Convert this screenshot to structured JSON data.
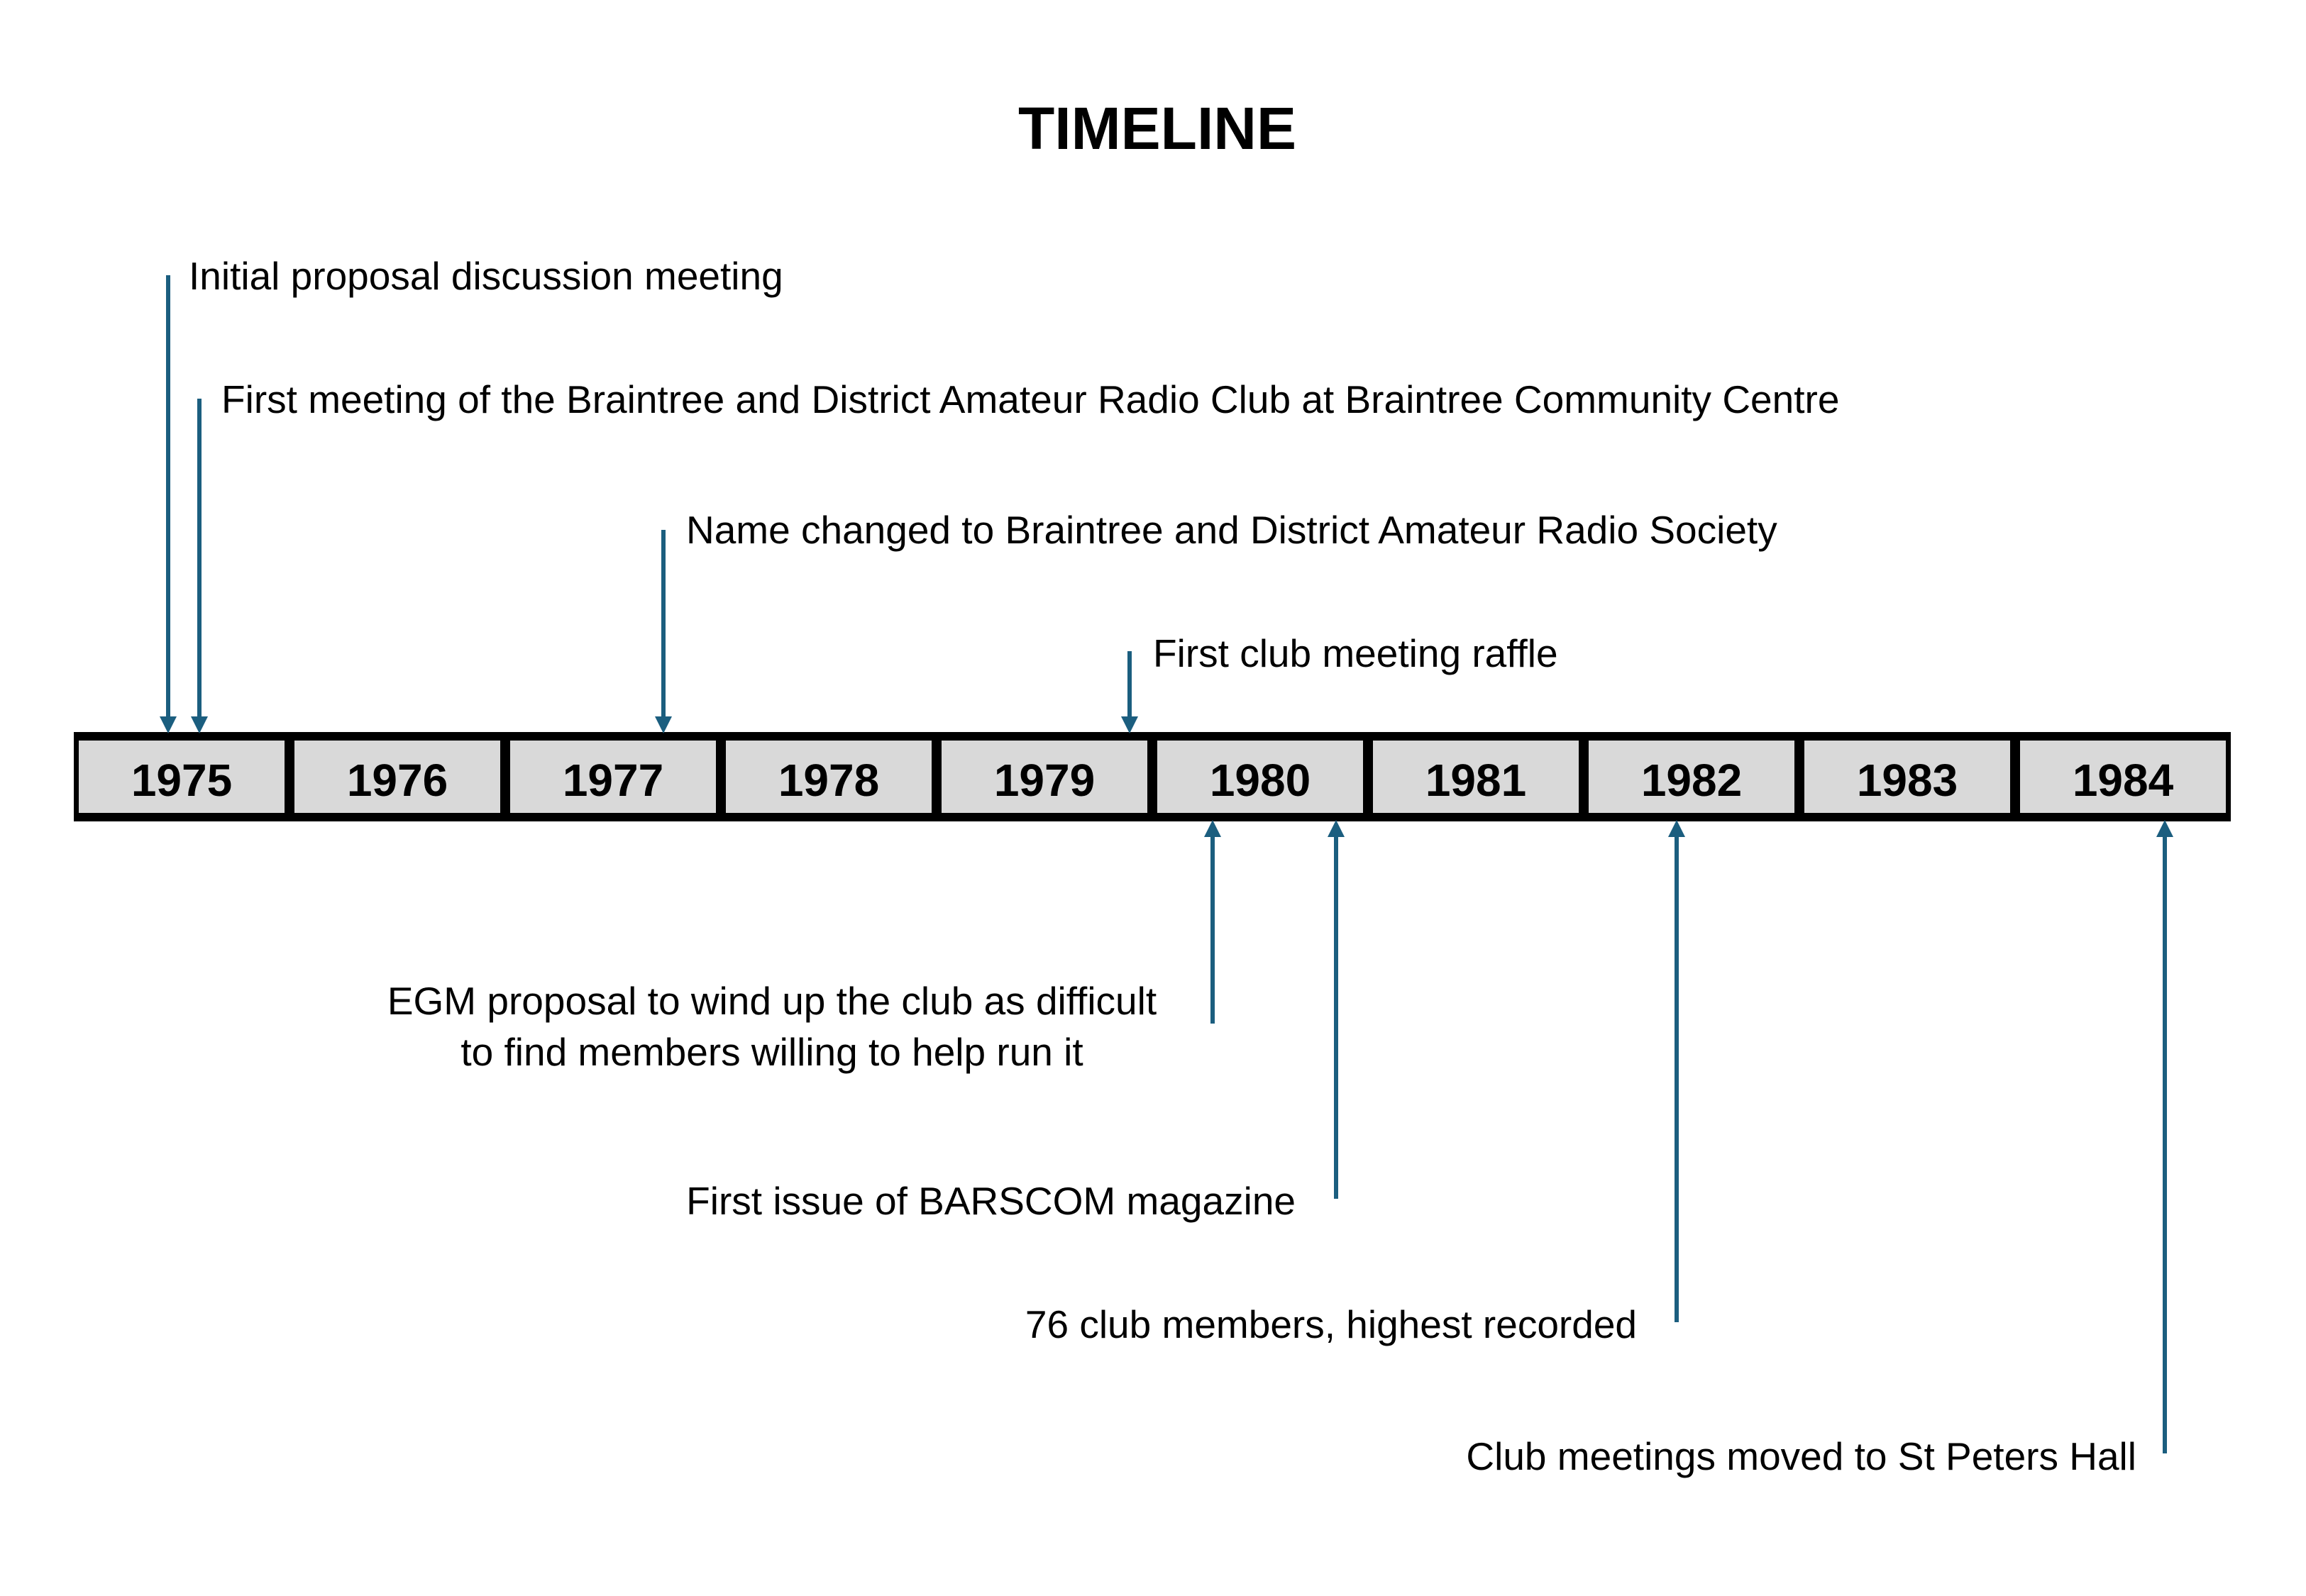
{
  "title": "TIMELINE",
  "accent_color": "#1b5e7f",
  "cell_fill": "#d9d9d9",
  "years": [
    "1975",
    "1976",
    "1977",
    "1978",
    "1979",
    "1980",
    "1981",
    "1982",
    "1983",
    "1984"
  ],
  "events_above": [
    {
      "text": "Initial proposal discussion meeting"
    },
    {
      "text": "First meeting of the Braintree and District Amateur Radio Club at Braintree Community Centre"
    },
    {
      "text": "Name changed to Braintree and District Amateur Radio Society"
    },
    {
      "text": "First club meeting raffle"
    }
  ],
  "events_below": [
    {
      "lines": [
        "EGM proposal to wind up the club as difficult",
        "to find members willing to help run it"
      ]
    },
    {
      "lines": [
        "First issue of BARSCOM magazine"
      ]
    },
    {
      "lines": [
        "76 club members, highest recorded"
      ]
    },
    {
      "lines": [
        "Club meetings moved to St Peters Hall"
      ]
    }
  ]
}
